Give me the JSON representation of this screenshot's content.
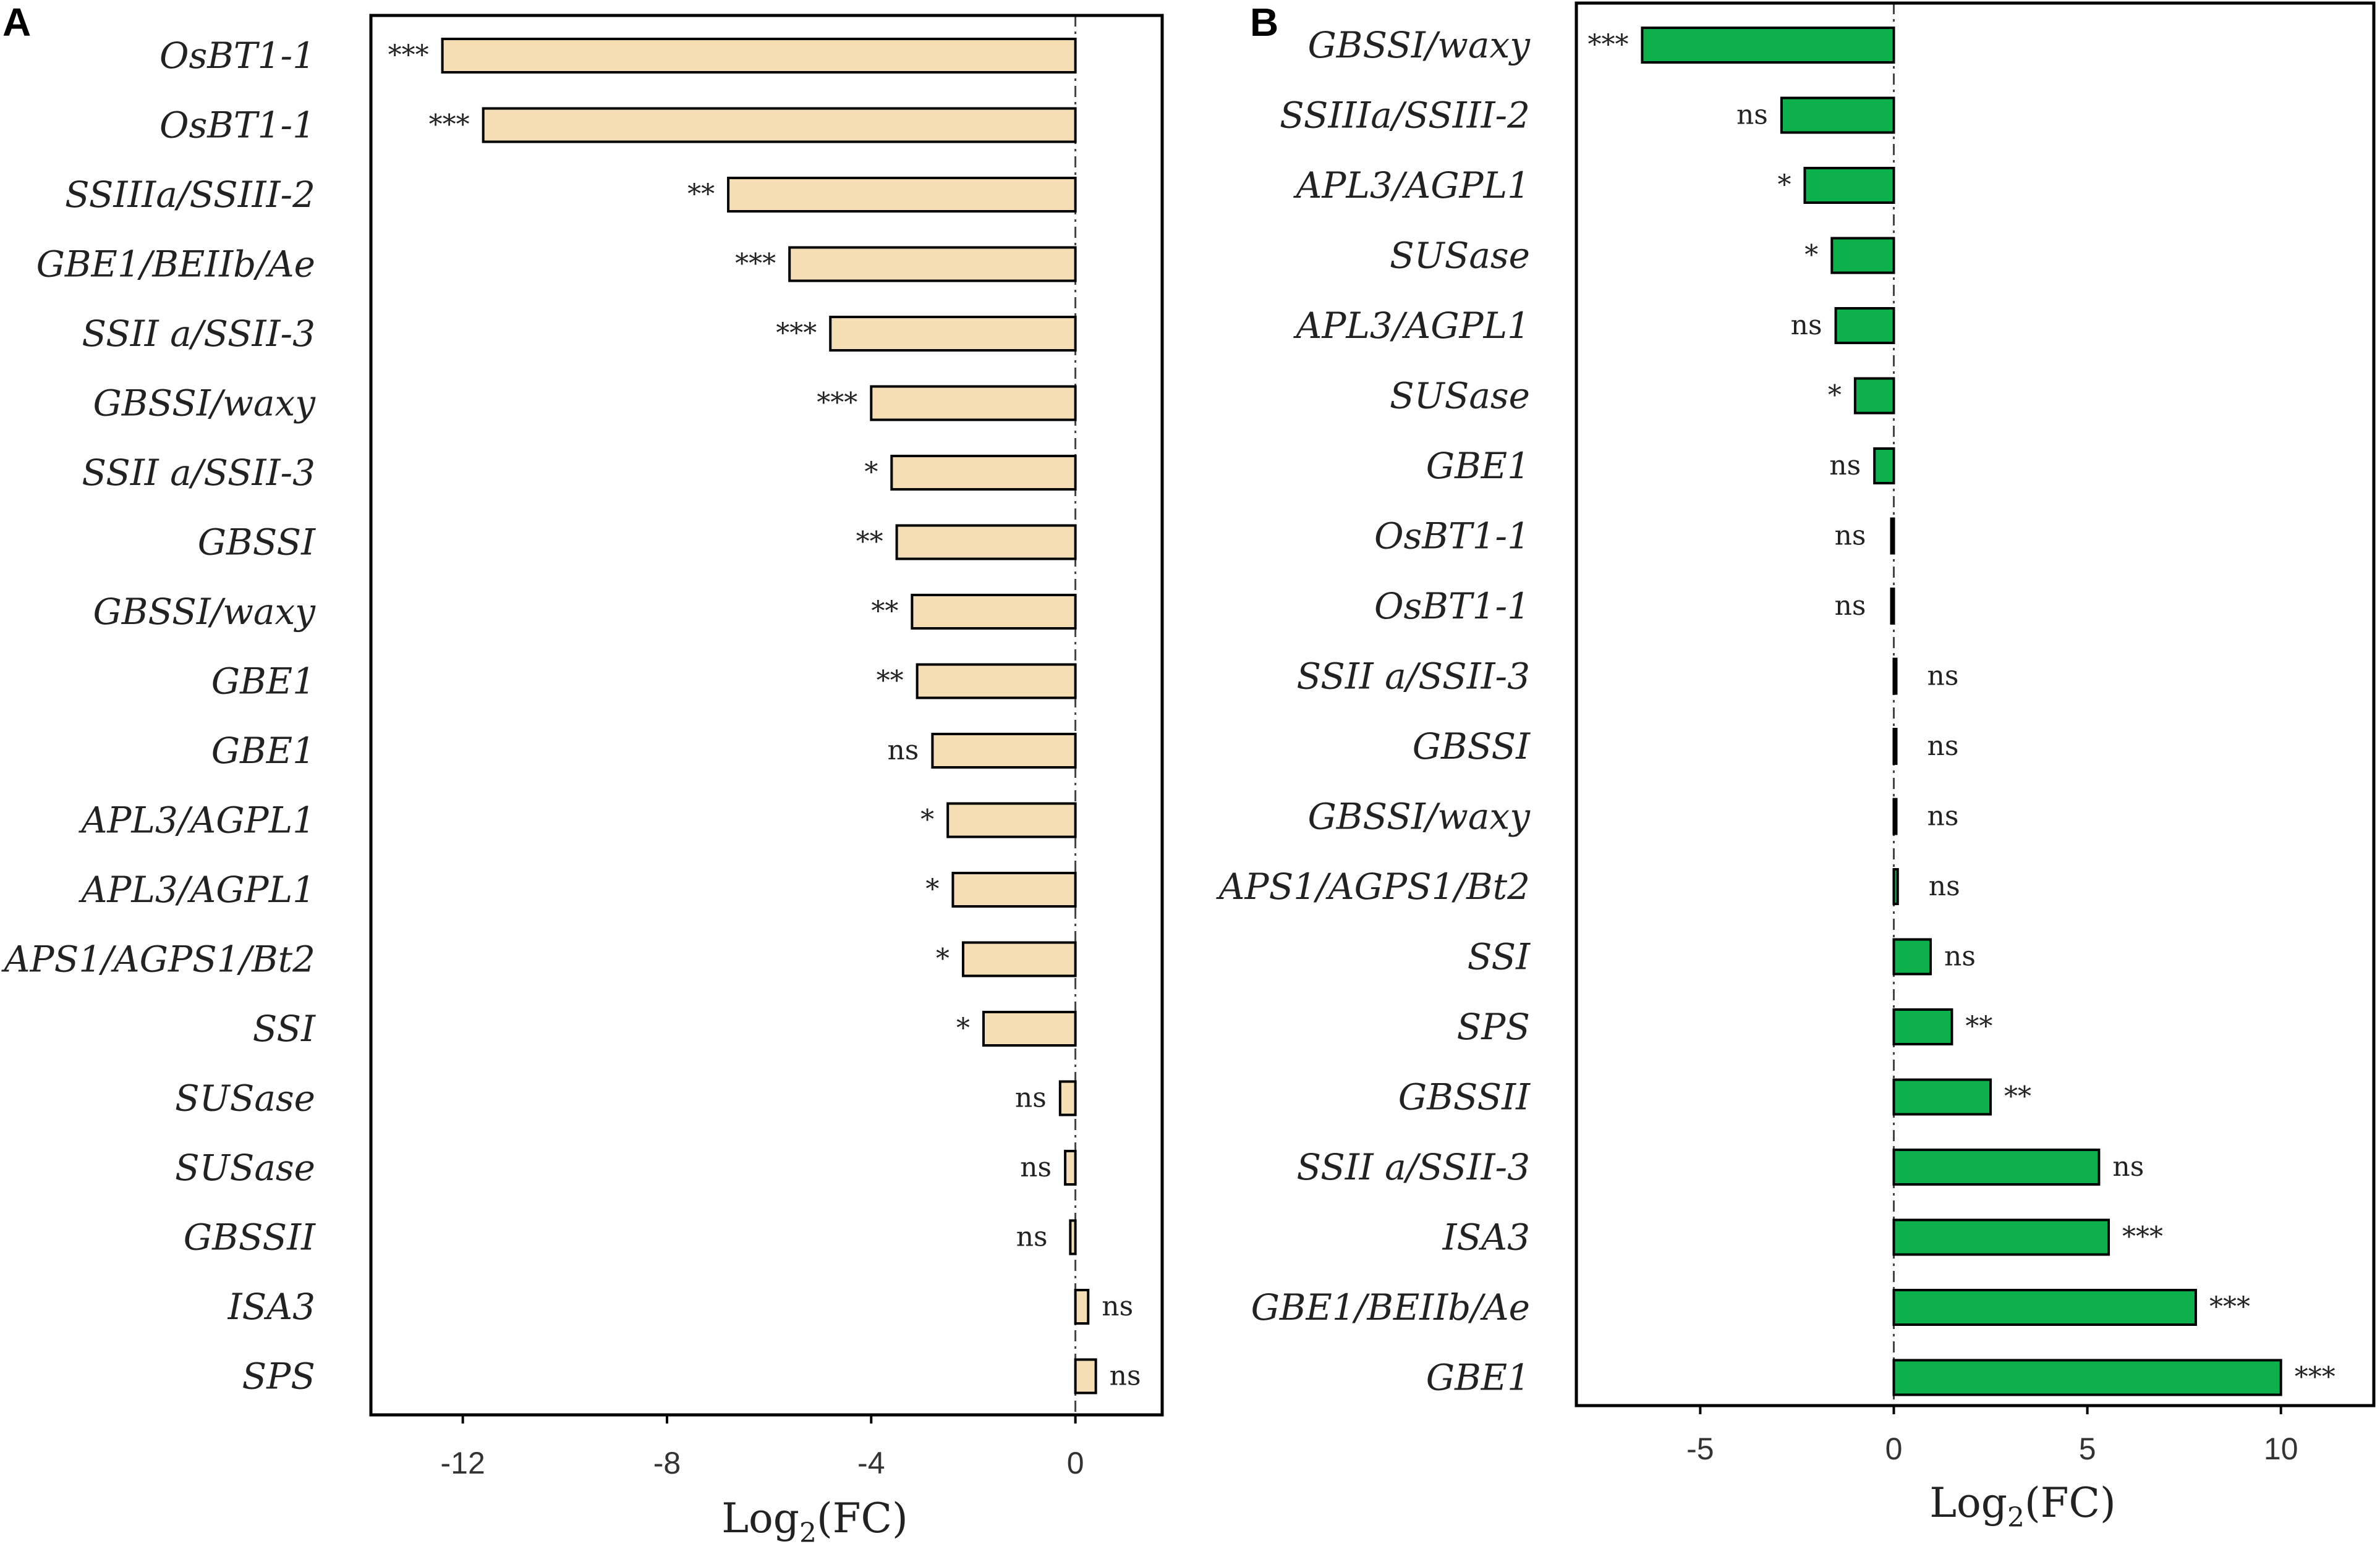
{
  "colors": {
    "panel_a_bar": "#F5DEB3",
    "panel_b_bar": "#0DB14B",
    "outline": "#000000"
  },
  "x_axis_label": "Log2(FC)",
  "chart_data": [
    {
      "type": "bar",
      "orientation": "horizontal",
      "panel_label": "A",
      "categories": [
        "OsBT1-1",
        "OsBT1-1",
        "SSIIIa/SSIII-2",
        "GBE1/BEIIb/Ae",
        "SSII a/SSII-3",
        "GBSSI/waxy",
        "SSII a/SSII-3",
        "GBSSI",
        "GBSSI/waxy",
        "GBE1",
        "GBE1",
        "APL3/AGPL1",
        "APL3/AGPL1",
        "APS1/AGPS1/Bt2",
        "SSI",
        "SUSase",
        "SUSase",
        "GBSSII",
        "ISA3",
        "SPS"
      ],
      "values": [
        -12.4,
        -11.6,
        -6.8,
        -5.6,
        -4.8,
        -4.0,
        -3.6,
        -3.5,
        -3.2,
        -3.1,
        -2.8,
        -2.5,
        -2.4,
        -2.2,
        -1.8,
        -0.3,
        -0.2,
        -0.1,
        0.25,
        0.4
      ],
      "significance": [
        "***",
        "***",
        "**",
        "***",
        "***",
        "***",
        "*",
        "**",
        "**",
        "**",
        "ns",
        "*",
        "*",
        "*",
        "*",
        "ns",
        "ns",
        "ns",
        "ns",
        "ns"
      ],
      "xlim": [
        -13.8,
        1.7
      ],
      "xticks": [
        -12,
        -8,
        -4,
        0
      ],
      "xtick_labels": [
        "-12",
        "-8",
        "-4",
        "0"
      ],
      "xlabel": "Log2(FC)"
    },
    {
      "type": "bar",
      "orientation": "horizontal",
      "panel_label": "B",
      "categories": [
        "GBSSI/waxy",
        "SSIIIa/SSIII-2",
        "APL3/AGPL1",
        "SUSase",
        "APL3/AGPL1",
        "SUSase",
        "GBE1",
        "OsBT1-1",
        "OsBT1-1",
        "SSII a/SSII-3",
        "GBSSI",
        "GBSSI/waxy",
        "APS1/AGPS1/Bt2",
        "SSI",
        "SPS",
        "GBSSII",
        "SSII a/SSII-3",
        "ISA3",
        "GBE1/BEIIb/Ae",
        "GBE1"
      ],
      "values": [
        -6.5,
        -2.9,
        -2.3,
        -1.6,
        -1.5,
        -1.0,
        -0.5,
        -0.02,
        -0.02,
        0.02,
        0.02,
        0.03,
        0.1,
        0.95,
        1.5,
        2.5,
        5.3,
        5.55,
        7.8,
        10.0
      ],
      "significance": [
        "***",
        "ns",
        "*",
        "*",
        "ns",
        "*",
        "ns",
        "ns",
        "ns",
        "ns",
        "ns",
        "ns",
        "ns",
        "ns",
        "**",
        "**",
        "ns",
        "***",
        "***",
        "***"
      ],
      "xlim": [
        -8.2,
        12.4
      ],
      "xticks": [
        -5,
        0,
        5,
        10
      ],
      "xtick_labels": [
        "-5",
        "0",
        "5",
        "10"
      ],
      "xlabel": "Log2(FC)"
    }
  ]
}
